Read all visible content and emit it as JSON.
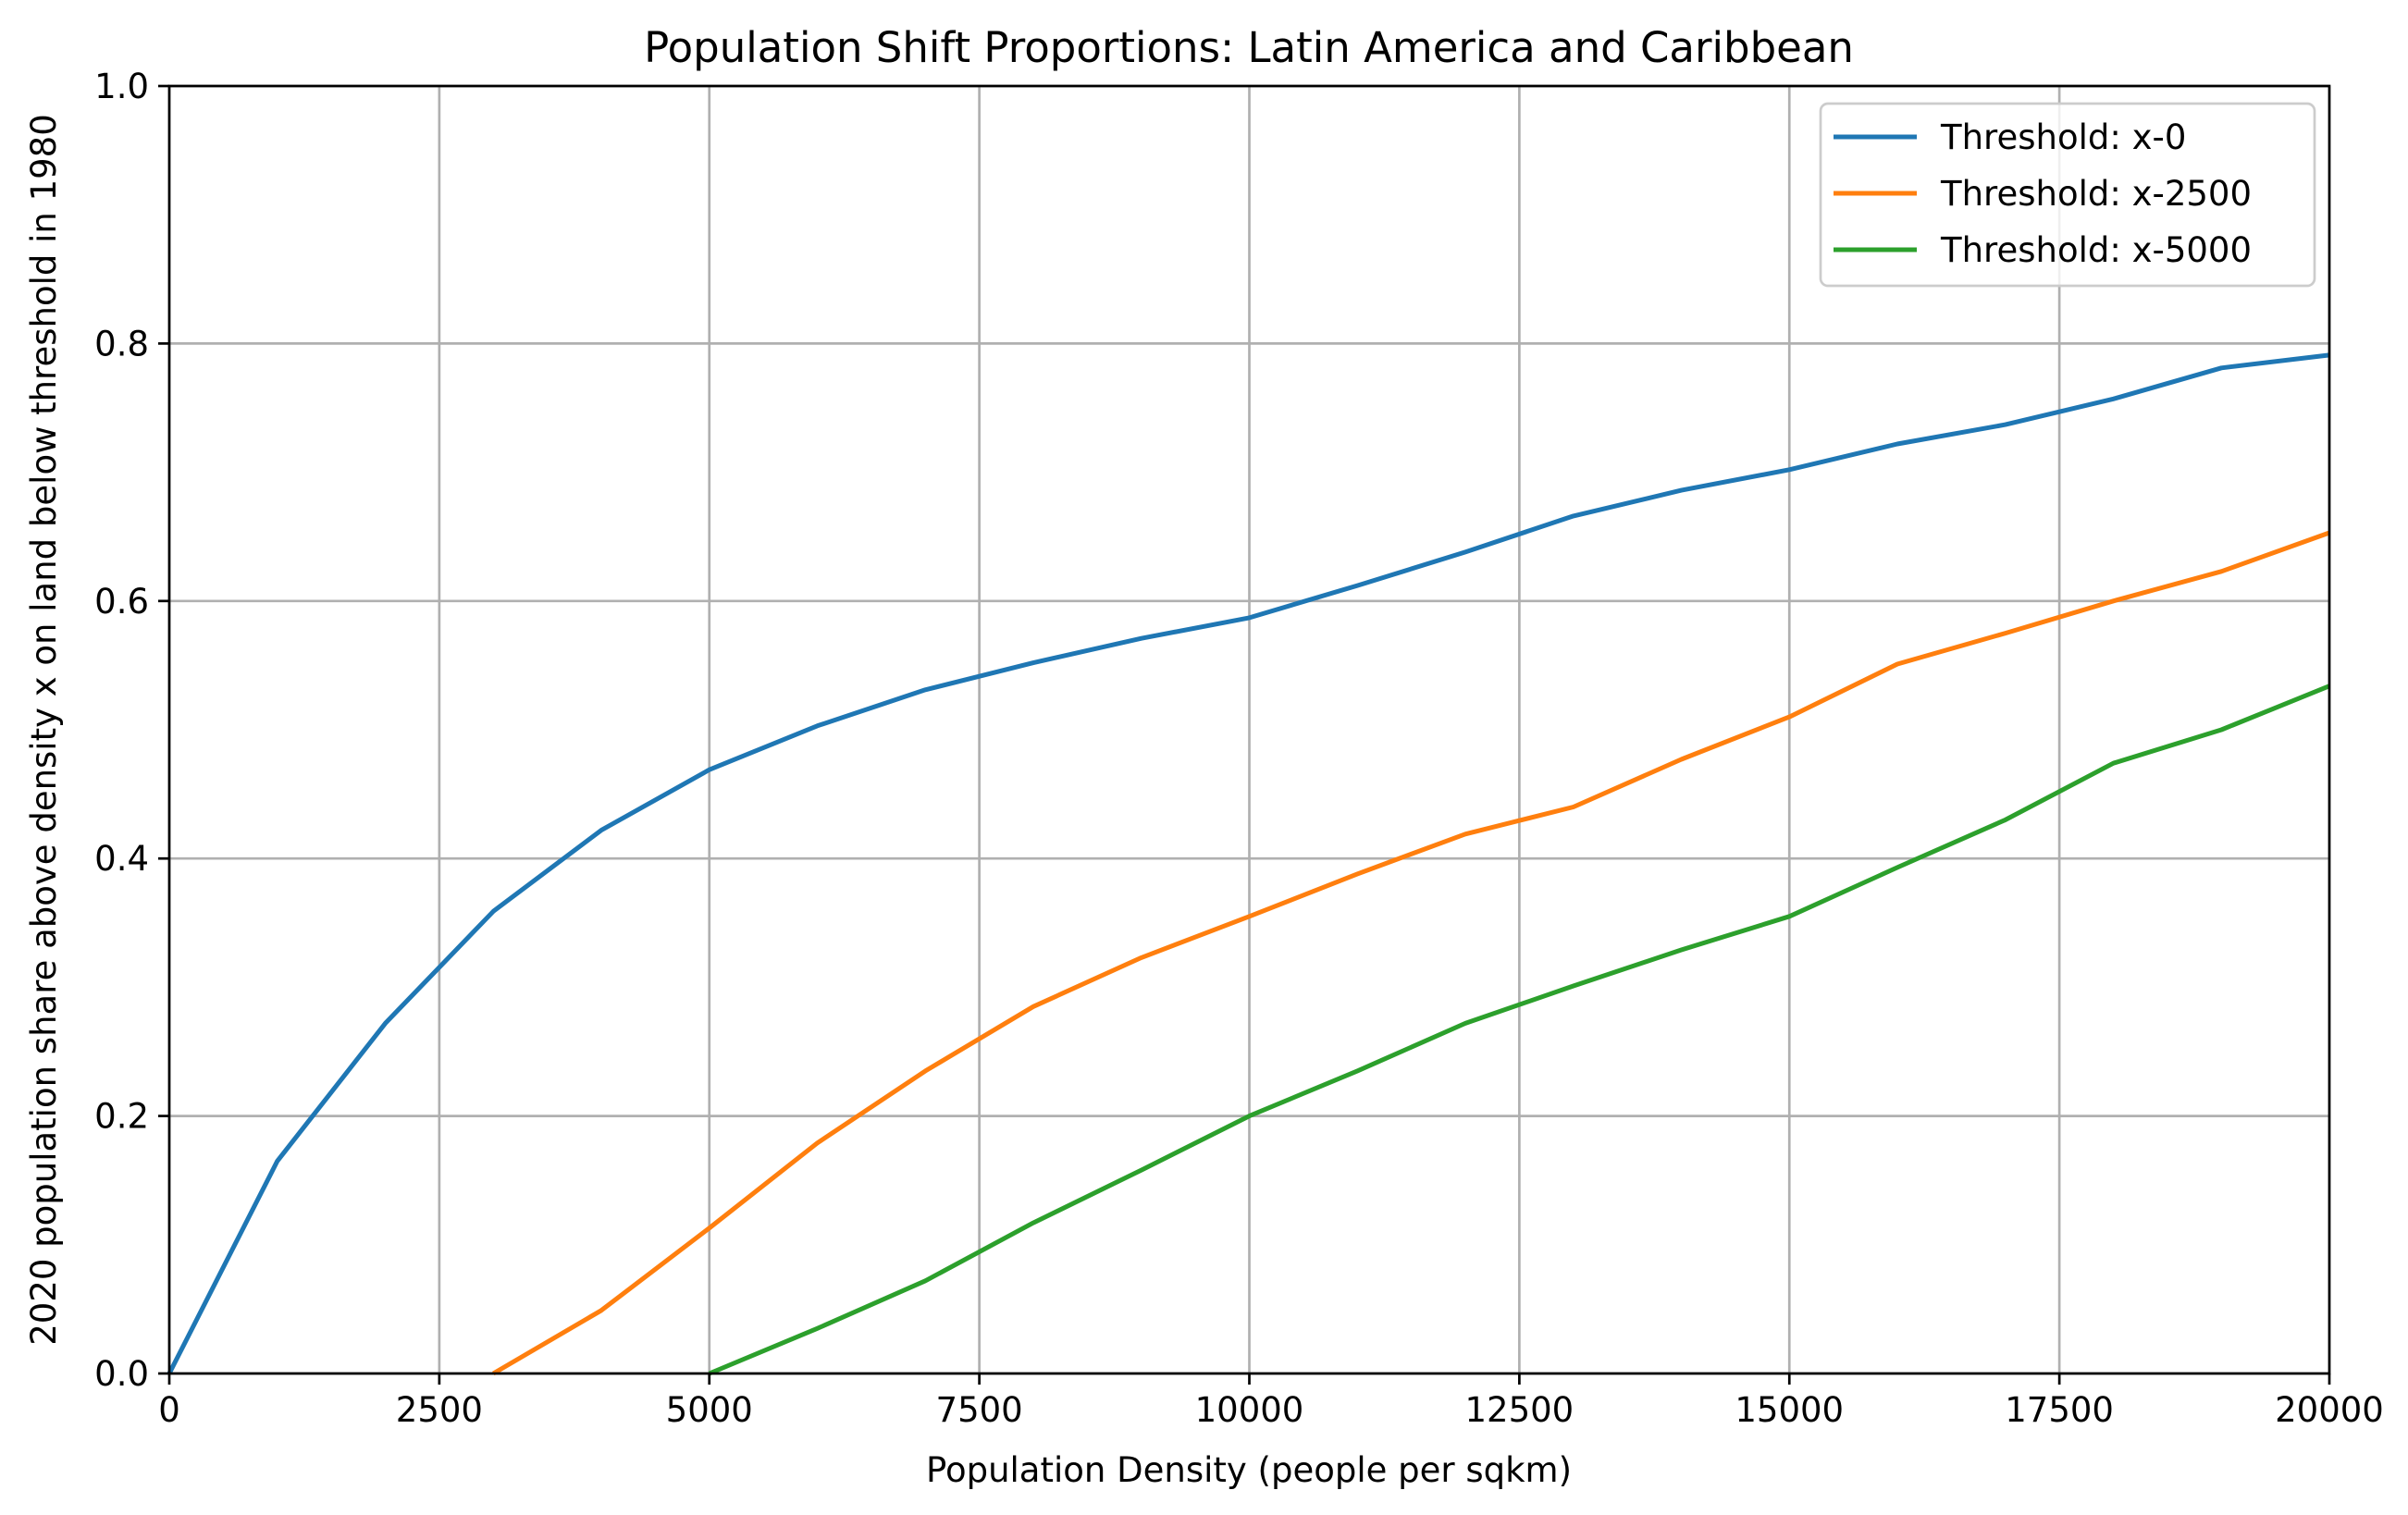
{
  "chart_data": {
    "type": "line",
    "title": "Population Shift Proportions: Latin America and Caribbean",
    "xlabel": "Population Density (people per sqkm)",
    "ylabel": "2020 population share above density x on land below threshold in 1980",
    "xlim": [
      0,
      20000
    ],
    "ylim": [
      0.0,
      1.0
    ],
    "xticks": [
      0,
      2500,
      5000,
      7500,
      10000,
      12500,
      15000,
      17500,
      20000
    ],
    "xtick_labels": [
      "0",
      "2500",
      "5000",
      "7500",
      "10000",
      "12500",
      "15000",
      "17500",
      "20000"
    ],
    "yticks": [
      0.0,
      0.2,
      0.4,
      0.6,
      0.8,
      1.0
    ],
    "ytick_labels": [
      "0.0",
      "0.2",
      "0.4",
      "0.6",
      "0.8",
      "1.0"
    ],
    "grid": true,
    "legend_position": "top-right",
    "series": [
      {
        "name": "Threshold: x-0",
        "color": "#1f77b4",
        "x": [
          0,
          1000,
          2000,
          3000,
          4000,
          5000,
          6000,
          7000,
          8000,
          9000,
          10000,
          11000,
          12000,
          13000,
          14000,
          15000,
          16000,
          17000,
          18000,
          19000,
          20000
        ],
        "y": [
          0.0,
          0.165,
          0.272,
          0.359,
          0.422,
          0.469,
          0.503,
          0.531,
          0.552,
          0.571,
          0.587,
          0.612,
          0.638,
          0.666,
          0.686,
          0.702,
          0.722,
          0.737,
          0.757,
          0.781,
          0.791
        ]
      },
      {
        "name": "Threshold: x-2500",
        "color": "#ff7f0e",
        "x": [
          3000,
          4000,
          5000,
          6000,
          7000,
          8000,
          9000,
          10000,
          11000,
          12000,
          13000,
          14000,
          15000,
          16000,
          17000,
          18000,
          19000,
          20000
        ],
        "y": [
          0.0,
          0.049,
          0.113,
          0.179,
          0.235,
          0.285,
          0.323,
          0.355,
          0.388,
          0.419,
          0.44,
          0.477,
          0.51,
          0.551,
          0.575,
          0.6,
          0.623,
          0.653
        ]
      },
      {
        "name": "Threshold: x-5000",
        "color": "#2ca02c",
        "x": [
          5000,
          6000,
          7000,
          8000,
          9000,
          10000,
          11000,
          12000,
          13000,
          14000,
          15000,
          16000,
          17000,
          18000,
          19000,
          20000
        ],
        "y": [
          0.0,
          0.035,
          0.072,
          0.117,
          0.158,
          0.2,
          0.235,
          0.272,
          0.301,
          0.329,
          0.355,
          0.393,
          0.43,
          0.474,
          0.5,
          0.534
        ]
      }
    ]
  }
}
